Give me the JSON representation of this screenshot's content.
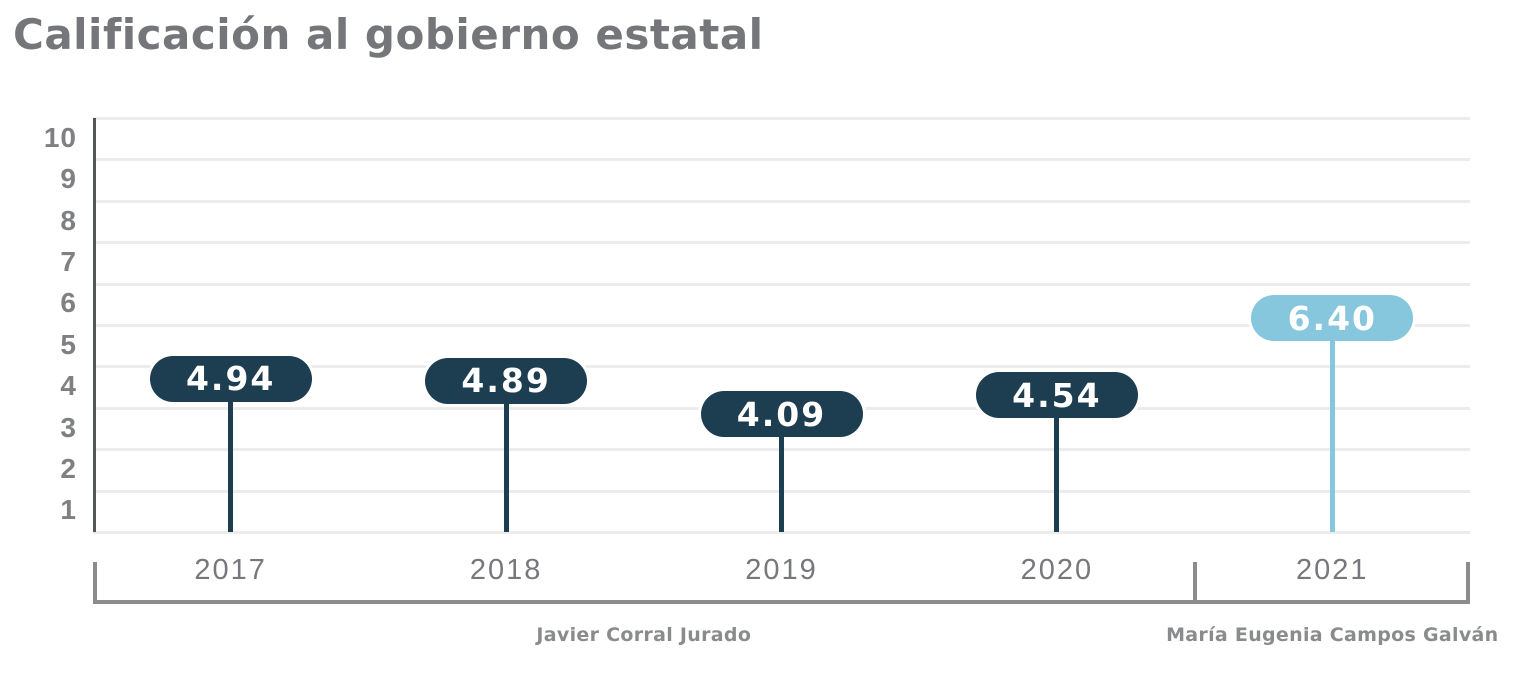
{
  "title": "Calificación al gobierno estatal",
  "chart_data": {
    "type": "bar",
    "style": "lollipop-badge",
    "title": "Calificación al gobierno estatal",
    "categories": [
      "2017",
      "2018",
      "2019",
      "2020",
      "2021"
    ],
    "values": [
      4.94,
      4.89,
      4.09,
      4.54,
      6.4
    ],
    "value_labels": [
      "4.94",
      "4.89",
      "4.09",
      "4.54",
      "6.40"
    ],
    "point_colors": [
      "#1d3d51",
      "#1d3d51",
      "#1d3d51",
      "#1d3d51",
      "#87c7de"
    ],
    "xlabel": "",
    "ylabel": "",
    "ylim": [
      0,
      10
    ],
    "yticks": [
      10,
      9,
      8,
      7,
      6,
      5,
      4,
      3,
      2,
      1
    ],
    "grid": true,
    "legend": false,
    "annotations": [
      {
        "label": "Javier Corral Jurado",
        "from_category": "2017",
        "to_category": "2020"
      },
      {
        "label": "María Eugenia Campos Galván",
        "from_category": "2021",
        "to_category": "2021"
      }
    ]
  },
  "colors": {
    "background": "#ffffff",
    "title": "#75767a",
    "badge_dark": "#1d3d51",
    "badge_light": "#87c7de",
    "badge_text": "#ffffff",
    "gridline": "#ececec",
    "axis_line": "#54575a",
    "ytick_label": "#7f8083",
    "xtick_label": "#77787b",
    "bracket": "#8c8c8c",
    "annotation_text": "#8a8b8d"
  }
}
